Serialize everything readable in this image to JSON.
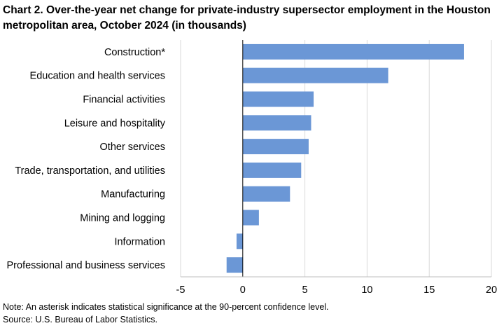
{
  "chart_data": {
    "type": "bar",
    "orientation": "horizontal",
    "title": "Chart 2. Over-the-year net change for private-industry supersector employment in the Houston metropolitan area, October 2024 (in thousands)",
    "categories": [
      "Construction*",
      "Education and health services",
      "Financial activities",
      "Leisure and hospitality",
      "Other services",
      "Trade, transportation, and utilities",
      "Manufacturing",
      "Mining and logging",
      "Information",
      "Professional and business services"
    ],
    "values": [
      17.8,
      11.7,
      5.7,
      5.5,
      5.3,
      4.7,
      3.8,
      1.3,
      -0.5,
      -1.3
    ],
    "xlim": [
      -5,
      20
    ],
    "xticks": [
      -5,
      0,
      5,
      10,
      15,
      20
    ],
    "grid": "vertical",
    "bar_color": "#6b97d6",
    "grid_color": "#d9d9d9"
  },
  "notes": {
    "note": "Note: An asterisk indicates statistical significance at the 90-percent confidence level.",
    "source": "Source: U.S. Bureau of Labor Statistics."
  }
}
